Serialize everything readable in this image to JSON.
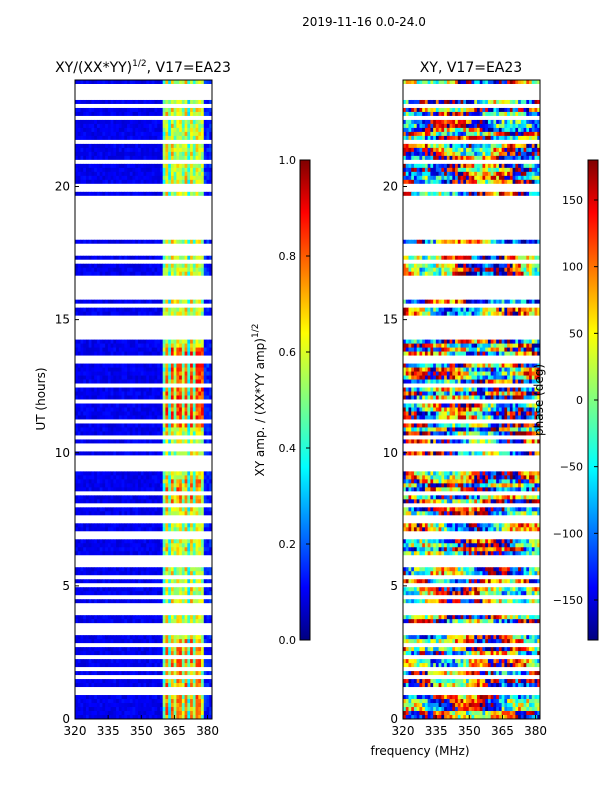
{
  "suptitle": "2019-11-16 0.0-24.0",
  "chart_data": [
    {
      "type": "heatmap",
      "title": "XY/(XX*YY)",
      "title_superscript": "1/2",
      "title_suffix": ", V17=EA23",
      "ylabel": "UT (hours)",
      "xlabel": "",
      "xlim": [
        320,
        382
      ],
      "ylim": [
        0,
        24
      ],
      "xticks": [
        320,
        335,
        350,
        365,
        380
      ],
      "yticks": [
        0,
        5,
        10,
        15,
        20
      ],
      "colormap": "jet",
      "colorbar": {
        "label": "XY amp. / (XX*YY amp)",
        "label_superscript": "1/2",
        "range": [
          0.0,
          1.0
        ],
        "ticks": [
          "0.0",
          "0.2",
          "0.4",
          "0.6",
          "0.8",
          "1.0"
        ]
      },
      "description": "amplitude ratio: low (~0.05) below 360 MHz, elevated (0.3-0.8) in 360-380 MHz band"
    },
    {
      "type": "heatmap",
      "title": "XY, V17=EA23",
      "ylabel": "",
      "xlabel": "frequency (MHz)",
      "xlim": [
        320,
        382
      ],
      "ylim": [
        0,
        24
      ],
      "xticks": [
        320,
        335,
        350,
        365,
        380
      ],
      "yticks": [
        0,
        5,
        10,
        15,
        20
      ],
      "colormap": "jet",
      "colorbar": {
        "label": "phase (deg)",
        "range": [
          -180,
          180
        ],
        "ticks": [
          "−150",
          "−100",
          "−50",
          "0",
          "50",
          "100",
          "150"
        ]
      },
      "description": "phase in degrees, spans full -180 to 180 range"
    }
  ],
  "flagged_hours": [
    0.95,
    1.1,
    1.55,
    1.85,
    2.3,
    2.8,
    3.3,
    3.55,
    4.05,
    4.3,
    4.6,
    5.05,
    5.35,
    5.8,
    6.0,
    6.9,
    7.5,
    8.0,
    8.5,
    9.4,
    9.6,
    9.8,
    10.1,
    10.3,
    10.55,
    11.2,
    11.9,
    12.5,
    13.5,
    14.35,
    14.55,
    14.7,
    14.9,
    15.1,
    15.5,
    15.9,
    16.05,
    16.25,
    16.5,
    17.2,
    17.55,
    17.8,
    18.1,
    18.3,
    18.55,
    18.75,
    19.0,
    19.2,
    19.5,
    19.85,
    20.0,
    20.9,
    21.7,
    22.6,
    23.0,
    23.4,
    23.7
  ]
}
